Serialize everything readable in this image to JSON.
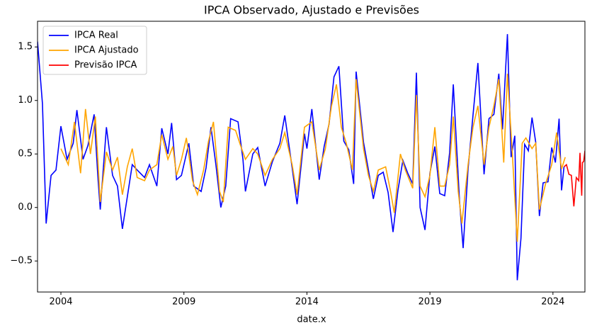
{
  "chart_data": {
    "type": "line",
    "title": "IPCA Observado, Ajustado e Previsões",
    "xlabel": "date.x",
    "xlim": [
      2003.05,
      2025.3
    ],
    "ylim": [
      -0.79,
      1.74
    ],
    "xticks": [
      2004,
      2009,
      2014,
      2019,
      2024
    ],
    "yticks": [
      {
        "value": -0.5,
        "label": "−0.5"
      },
      {
        "value": 0,
        "label": "0.0"
      },
      0.5,
      {
        "value": 1,
        "label": "1.0"
      },
      1.5
    ],
    "legend": "upper left",
    "grid": false,
    "series": [
      {
        "name": "IPCA Real",
        "color": "#0000ff",
        "x": [
          2003.05,
          2003.25,
          2003.4,
          2003.6,
          2003.8,
          2004.0,
          2004.25,
          2004.5,
          2004.65,
          2004.9,
          2005.1,
          2005.35,
          2005.5,
          2005.6,
          2005.85,
          2006.1,
          2006.3,
          2006.5,
          2006.7,
          2006.9,
          2007.1,
          2007.4,
          2007.6,
          2007.9,
          2008.1,
          2008.35,
          2008.5,
          2008.7,
          2008.9,
          2009.2,
          2009.4,
          2009.7,
          2009.9,
          2010.1,
          2010.3,
          2010.5,
          2010.7,
          2010.9,
          2011.2,
          2011.4,
          2011.5,
          2011.8,
          2012.0,
          2012.3,
          2012.6,
          2012.9,
          2013.1,
          2013.4,
          2013.6,
          2013.9,
          2014.0,
          2014.2,
          2014.5,
          2014.7,
          2014.9,
          2015.1,
          2015.3,
          2015.5,
          2015.7,
          2015.9,
          2016.0,
          2016.3,
          2016.5,
          2016.7,
          2016.9,
          2017.1,
          2017.3,
          2017.5,
          2017.7,
          2017.9,
          2018.1,
          2018.3,
          2018.45,
          2018.6,
          2018.8,
          2019.0,
          2019.2,
          2019.4,
          2019.6,
          2019.8,
          2019.95,
          2020.2,
          2020.35,
          2020.55,
          2020.75,
          2020.95,
          2021.2,
          2021.4,
          2021.6,
          2021.8,
          2021.95,
          2022.15,
          2022.3,
          2022.45,
          2022.55,
          2022.7,
          2022.85,
          2023.0,
          2023.15,
          2023.3,
          2023.45,
          2023.6,
          2023.8,
          2023.95,
          2024.1,
          2024.25,
          2024.35,
          2024.45
        ],
        "values": [
          1.55,
          0.97,
          -0.15,
          0.3,
          0.35,
          0.76,
          0.45,
          0.6,
          0.91,
          0.45,
          0.58,
          0.87,
          0.3,
          -0.02,
          0.75,
          0.3,
          0.2,
          -0.2,
          0.1,
          0.4,
          0.35,
          0.28,
          0.4,
          0.2,
          0.74,
          0.5,
          0.79,
          0.26,
          0.3,
          0.6,
          0.2,
          0.15,
          0.37,
          0.75,
          0.4,
          0.0,
          0.2,
          0.83,
          0.8,
          0.45,
          0.15,
          0.5,
          0.56,
          0.2,
          0.43,
          0.6,
          0.86,
          0.37,
          0.03,
          0.69,
          0.55,
          0.92,
          0.26,
          0.57,
          0.78,
          1.22,
          1.32,
          0.62,
          0.54,
          0.22,
          1.27,
          0.61,
          0.35,
          0.08,
          0.3,
          0.33,
          0.14,
          -0.23,
          0.16,
          0.44,
          0.32,
          0.22,
          1.26,
          0.0,
          -0.21,
          0.32,
          0.57,
          0.13,
          0.11,
          0.51,
          1.15,
          0.07,
          -0.38,
          0.36,
          0.86,
          1.35,
          0.31,
          0.83,
          0.87,
          1.25,
          0.73,
          1.62,
          0.47,
          0.67,
          -0.68,
          -0.29,
          0.59,
          0.53,
          0.84,
          0.61,
          -0.08,
          0.23,
          0.24,
          0.56,
          0.42,
          0.83,
          0.16,
          0.38
        ]
      },
      {
        "name": "IPCA Ajustado",
        "color": "#ffa500",
        "x": [
          2004.0,
          2004.3,
          2004.55,
          2004.8,
          2005.0,
          2005.2,
          2005.4,
          2005.6,
          2005.85,
          2006.1,
          2006.3,
          2006.5,
          2006.7,
          2006.9,
          2007.1,
          2007.4,
          2007.6,
          2007.9,
          2008.1,
          2008.35,
          2008.55,
          2008.7,
          2008.9,
          2009.1,
          2009.35,
          2009.55,
          2009.8,
          2010.0,
          2010.2,
          2010.45,
          2010.6,
          2010.8,
          2011.1,
          2011.3,
          2011.5,
          2011.8,
          2012.0,
          2012.3,
          2012.6,
          2012.9,
          2013.1,
          2013.4,
          2013.6,
          2013.9,
          2014.2,
          2014.5,
          2014.75,
          2015.0,
          2015.2,
          2015.4,
          2015.6,
          2015.85,
          2016.0,
          2016.3,
          2016.5,
          2016.7,
          2016.9,
          2017.2,
          2017.4,
          2017.55,
          2017.8,
          2018.0,
          2018.3,
          2018.45,
          2018.6,
          2018.8,
          2019.0,
          2019.2,
          2019.4,
          2019.6,
          2019.8,
          2019.95,
          2020.15,
          2020.3,
          2020.55,
          2020.75,
          2020.95,
          2021.2,
          2021.4,
          2021.6,
          2021.8,
          2022.0,
          2022.15,
          2022.35,
          2022.55,
          2022.75,
          2022.9,
          2023.15,
          2023.3,
          2023.45,
          2023.7,
          2023.95,
          2024.15,
          2024.35,
          2024.5
        ],
        "values": [
          0.55,
          0.4,
          0.8,
          0.32,
          0.92,
          0.5,
          0.85,
          0.05,
          0.52,
          0.35,
          0.47,
          0.12,
          0.38,
          0.55,
          0.28,
          0.25,
          0.35,
          0.4,
          0.68,
          0.45,
          0.57,
          0.3,
          0.45,
          0.65,
          0.25,
          0.12,
          0.35,
          0.62,
          0.8,
          0.15,
          0.05,
          0.75,
          0.72,
          0.58,
          0.45,
          0.55,
          0.5,
          0.3,
          0.45,
          0.55,
          0.7,
          0.4,
          0.12,
          0.75,
          0.8,
          0.35,
          0.55,
          0.95,
          1.15,
          0.75,
          0.6,
          0.35,
          1.2,
          0.55,
          0.3,
          0.15,
          0.35,
          0.38,
          0.15,
          -0.05,
          0.5,
          0.35,
          0.18,
          1.05,
          0.2,
          0.1,
          0.3,
          0.75,
          0.2,
          0.2,
          0.4,
          0.85,
          0.15,
          -0.15,
          0.4,
          0.75,
          0.95,
          0.4,
          0.75,
          0.95,
          1.2,
          0.42,
          1.25,
          0.5,
          -0.32,
          0.6,
          0.65,
          0.55,
          0.6,
          -0.02,
          0.22,
          0.4,
          0.7,
          0.36,
          0.47
        ]
      },
      {
        "name": "Previsão IPCA",
        "color": "#ff0000",
        "x": [
          2024.45,
          2024.55,
          2024.65,
          2024.75,
          2024.85,
          2024.95,
          2025.05,
          2025.1,
          2025.17,
          2025.2,
          2025.25,
          2025.3
        ],
        "values": [
          0.38,
          0.4,
          0.31,
          0.3,
          0.01,
          0.28,
          0.25,
          0.51,
          0.11,
          0.42,
          0.43,
          0.53
        ]
      }
    ]
  }
}
